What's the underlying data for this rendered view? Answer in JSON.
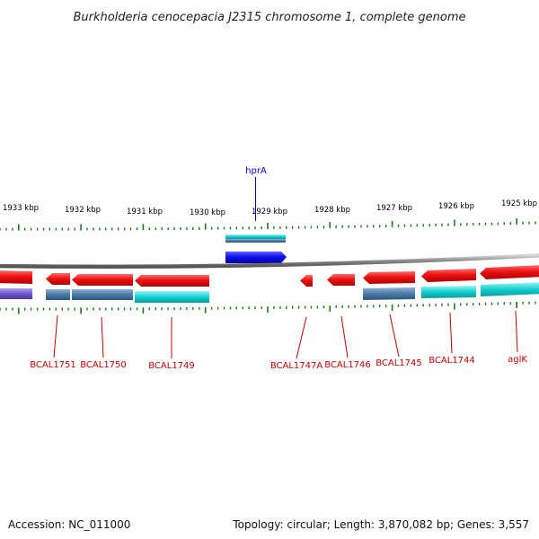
{
  "title": "Burkholderia cenocepacia J2315 chromosome 1, complete genome",
  "footer": {
    "accession": "Accession: NC_011000",
    "topology": "Topology: circular; Length: 3,870,082 bp; Genes: 3,557"
  },
  "scale_labels": [
    "1933 kbp",
    "1932 kbp",
    "1931 kbp",
    "1930 kbp",
    "1929 kbp",
    "1928 kbp",
    "1927 kbp",
    "1926 kbp",
    "1925 kbp"
  ],
  "gene_labels": [
    {
      "text": "hprA",
      "color": "#0000cc"
    },
    {
      "text": "BCAL1751",
      "color": "#cc0000"
    },
    {
      "text": "BCAL1750",
      "color": "#cc0000"
    },
    {
      "text": "BCAL1749",
      "color": "#cc0000"
    },
    {
      "text": "BCAL1747A",
      "color": "#cc0000"
    },
    {
      "text": "BCAL1746",
      "color": "#cc0000"
    },
    {
      "text": "BCAL1745",
      "color": "#cc0000"
    },
    {
      "text": "BCAL1744",
      "color": "#cc0000"
    },
    {
      "text": "aglK",
      "color": "#cc0000"
    }
  ],
  "colors": {
    "backbone": "#8a8a8a",
    "tick": "#1a7a1a",
    "cds_red": "#ee1111",
    "cds_blue": "#1010ee",
    "cyan": "#10d0d0",
    "steel": "#4a7aa8",
    "purple": "#6a5acd"
  }
}
